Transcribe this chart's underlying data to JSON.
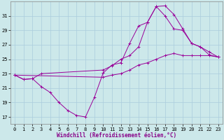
{
  "xlabel": "Windchill (Refroidissement éolien,°C)",
  "bg_color": "#cce8ea",
  "grid_color": "#aaccdd",
  "line_color": "#990099",
  "xlim": [
    -0.5,
    23.5
  ],
  "ylim": [
    16.0,
    33.0
  ],
  "yticks": [
    17,
    19,
    21,
    23,
    25,
    27,
    29,
    31
  ],
  "xticks": [
    0,
    1,
    2,
    3,
    4,
    5,
    6,
    7,
    8,
    9,
    10,
    11,
    12,
    13,
    14,
    15,
    16,
    17,
    18,
    19,
    20,
    21,
    22,
    23
  ],
  "line1_x": [
    0,
    1,
    2,
    3,
    4,
    5,
    6,
    7,
    8,
    9,
    10,
    11,
    12,
    13,
    14,
    15,
    16,
    17,
    18,
    19,
    20,
    21,
    22,
    23
  ],
  "line1_y": [
    22.8,
    22.2,
    22.3,
    21.2,
    20.4,
    19.0,
    17.9,
    17.2,
    17.0,
    19.7,
    23.1,
    24.2,
    24.5,
    27.2,
    29.6,
    30.1,
    32.3,
    32.4,
    31.2,
    29.2,
    27.2,
    26.7,
    25.6,
    25.3
  ],
  "line2_x": [
    0,
    1,
    2,
    3,
    10,
    11,
    12,
    13,
    14,
    15,
    16,
    17,
    18,
    19,
    20,
    21,
    22,
    23
  ],
  "line2_y": [
    22.8,
    22.2,
    22.3,
    23.0,
    23.5,
    24.1,
    25.0,
    25.5,
    26.7,
    30.1,
    32.3,
    31.0,
    29.2,
    29.0,
    27.2,
    26.7,
    26.0,
    25.3
  ],
  "line3_x": [
    0,
    10,
    11,
    12,
    13,
    14,
    15,
    16,
    17,
    18,
    19,
    20,
    21,
    22,
    23
  ],
  "line3_y": [
    22.8,
    22.5,
    22.8,
    23.0,
    23.5,
    24.2,
    24.5,
    25.0,
    25.5,
    25.8,
    25.5,
    25.5,
    25.5,
    25.5,
    25.3
  ],
  "xlabel_color": "#880088",
  "xlabel_fontsize": 5.5,
  "tick_fontsize": 5.0,
  "lw": 0.7,
  "ms": 2.5,
  "mew": 0.7
}
